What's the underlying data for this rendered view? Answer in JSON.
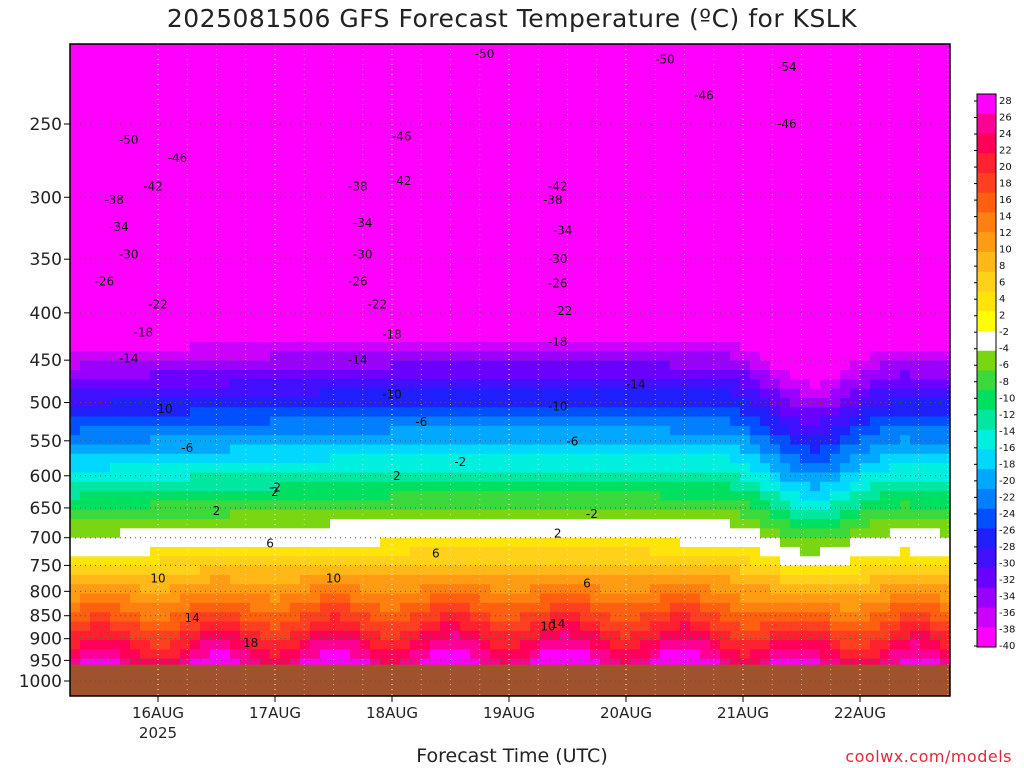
{
  "title": "2025081506 GFS Forecast Temperature (ºC) for KSLK",
  "footer": {
    "xlabel": "Forecast Time (UTC)",
    "credit": "coolwx.com/models"
  },
  "chart_data": {
    "type": "heatmap",
    "title": "2025081506 GFS Forecast Temperature (ºC) for KSLK",
    "xlabel": "Forecast Time (UTC)",
    "ylabel": "",
    "x_ticks": [
      "16AUG",
      "17AUG",
      "18AUG",
      "19AUG",
      "20AUG",
      "21AUG",
      "22AUG"
    ],
    "x_subtitle": "2025",
    "y_ticks": [
      250,
      300,
      350,
      400,
      450,
      500,
      550,
      600,
      650,
      700,
      750,
      800,
      850,
      900,
      950,
      1000
    ],
    "y_axis": "pressure (hPa), log scale, inverted",
    "ylim": [
      1000,
      200
    ],
    "colorbar": {
      "labels": [
        28,
        24,
        20,
        16,
        12,
        8,
        4,
        2,
        -2,
        -4,
        -8,
        -12,
        -16,
        -20,
        -24,
        -28,
        -32,
        -36,
        -40
      ],
      "minor": [
        26,
        22,
        18,
        14,
        10,
        6,
        -6,
        -10,
        -14,
        -18,
        -22,
        -26,
        -30,
        -34,
        -38
      ],
      "colors": [
        "#ff00ff",
        "#ff0095",
        "#ff0058",
        "#ff2030",
        "#ff4020",
        "#ff6010",
        "#ff8010",
        "#ff9c14",
        "#ffb818",
        "#ffd11a",
        "#ffe40c",
        "#ffff00",
        "#ffffff",
        "#7ad612",
        "#3bd93b",
        "#00e060",
        "#00e8a0",
        "#00f0e0",
        "#00d8ff",
        "#00a8ff",
        "#0080ff",
        "#0050ff",
        "#2020ff",
        "#4010ff",
        "#6a00ff",
        "#9a00ff",
        "#cc00ff",
        "#ff00ff"
      ]
    },
    "contour_labels": [
      {
        "t": "2025-08-15T18",
        "p": 260,
        "v": -50
      },
      {
        "t": "2025-08-16T04",
        "p": 272,
        "v": -46
      },
      {
        "t": "2025-08-15T23",
        "p": 292,
        "v": -42
      },
      {
        "t": "2025-08-15T15",
        "p": 302,
        "v": -38
      },
      {
        "t": "2025-08-15T16",
        "p": 323,
        "v": -34
      },
      {
        "t": "2025-08-15T18",
        "p": 346,
        "v": -30
      },
      {
        "t": "2025-08-15T13",
        "p": 370,
        "v": -26
      },
      {
        "t": "2025-08-16T00",
        "p": 392,
        "v": -22
      },
      {
        "t": "2025-08-15T21",
        "p": 420,
        "v": -18
      },
      {
        "t": "2025-08-15T18",
        "p": 448,
        "v": -14
      },
      {
        "t": "2025-08-16T01",
        "p": 508,
        "v": -10
      },
      {
        "t": "2025-08-16T06",
        "p": 560,
        "v": -6
      },
      {
        "t": "2025-08-17T00",
        "p": 618,
        "v": -2
      },
      {
        "t": "2025-08-16T12",
        "p": 655,
        "v": 2
      },
      {
        "t": "2025-08-16T23",
        "p": 710,
        "v": 6
      },
      {
        "t": "2025-08-16T00",
        "p": 775,
        "v": 10
      },
      {
        "t": "2025-08-16T07",
        "p": 855,
        "v": 14
      },
      {
        "t": "2025-08-16T19",
        "p": 910,
        "v": 18
      },
      {
        "t": "2025-08-18T02",
        "p": 258,
        "v": -46
      },
      {
        "t": "2025-08-18T02",
        "p": 288,
        "v": -42
      },
      {
        "t": "2025-08-17T17",
        "p": 292,
        "v": -38
      },
      {
        "t": "2025-08-17T18",
        "p": 320,
        "v": -34
      },
      {
        "t": "2025-08-17T18",
        "p": 346,
        "v": -30
      },
      {
        "t": "2025-08-17T17",
        "p": 370,
        "v": -26
      },
      {
        "t": "2025-08-17T21",
        "p": 392,
        "v": -22
      },
      {
        "t": "2025-08-18T00",
        "p": 422,
        "v": -18
      },
      {
        "t": "2025-08-17T17",
        "p": 450,
        "v": -14
      },
      {
        "t": "2025-08-18T00",
        "p": 490,
        "v": -10
      },
      {
        "t": "2025-08-18T06",
        "p": 525,
        "v": -6
      },
      {
        "t": "2025-08-17T00",
        "p": 625,
        "v": 2
      },
      {
        "t": "2025-08-18T01",
        "p": 600,
        "v": 2
      },
      {
        "t": "2025-08-18T14",
        "p": 580,
        "v": -2
      },
      {
        "t": "2025-08-17T12",
        "p": 775,
        "v": 10
      },
      {
        "t": "2025-08-18T09",
        "p": 728,
        "v": 6
      },
      {
        "t": "2025-08-18T19",
        "p": 210,
        "v": -50
      },
      {
        "t": "2025-08-19T10",
        "p": 292,
        "v": -42
      },
      {
        "t": "2025-08-19T09",
        "p": 302,
        "v": -38
      },
      {
        "t": "2025-08-19T11",
        "p": 326,
        "v": -34
      },
      {
        "t": "2025-08-19T10",
        "p": 350,
        "v": -30
      },
      {
        "t": "2025-08-19T10",
        "p": 372,
        "v": -26
      },
      {
        "t": "2025-08-19T11",
        "p": 398,
        "v": -22
      },
      {
        "t": "2025-08-19T10",
        "p": 430,
        "v": -18
      },
      {
        "t": "2025-08-20T02",
        "p": 478,
        "v": -14
      },
      {
        "t": "2025-08-19T10",
        "p": 505,
        "v": -10
      },
      {
        "t": "2025-08-19T13",
        "p": 551,
        "v": -6
      },
      {
        "t": "2025-08-19T17",
        "p": 660,
        "v": -2
      },
      {
        "t": "2025-08-19T10",
        "p": 693,
        "v": 2
      },
      {
        "t": "2025-08-19T16",
        "p": 785,
        "v": 6
      },
      {
        "t": "2025-08-19T08",
        "p": 873,
        "v": 10
      },
      {
        "t": "2025-08-19T10",
        "p": 868,
        "v": 14
      },
      {
        "t": "2025-08-20T08",
        "p": 213,
        "v": -50
      },
      {
        "t": "2025-08-20T16",
        "p": 233,
        "v": -46
      },
      {
        "t": "2025-08-21T09",
        "p": 217,
        "v": -54
      },
      {
        "t": "2025-08-21T09",
        "p": 250,
        "v": -46
      }
    ]
  }
}
